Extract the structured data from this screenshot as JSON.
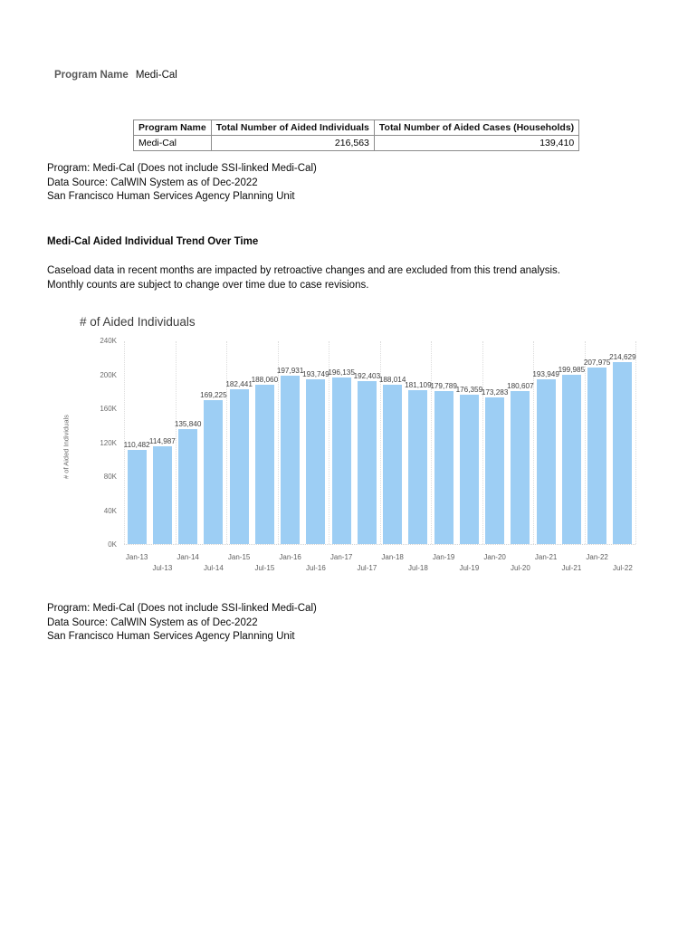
{
  "header": {
    "program_label": "Program Name",
    "program_value": "Medi-Cal"
  },
  "summary_table": {
    "headers": [
      "Program Name",
      "Total Number of Aided Individuals",
      "Total Number of Aided Cases (Households)"
    ],
    "rows": [
      [
        "Medi-Cal",
        "216,563",
        "139,410"
      ]
    ]
  },
  "source_note_top": [
    "Program: Medi-Cal (Does not include SSI-linked Medi-Cal)",
    "Data Source: CalWIN System as of Dec-2022",
    "San Francisco Human Services Agency Planning Unit"
  ],
  "section": {
    "heading": "Medi-Cal Aided Individual Trend Over Time",
    "note_line1": "Caseload data in recent months are impacted by retroactive changes and are excluded from this trend analysis.",
    "note_line2": "Monthly counts are subject to change over time due to case revisions."
  },
  "chart_data": {
    "type": "bar",
    "title": "# of Aided Individuals",
    "ylabel": "# of Aided Individuals",
    "xlabel": "",
    "categories": [
      "Jan-13",
      "Jul-13",
      "Jan-14",
      "Jul-14",
      "Jan-15",
      "Jul-15",
      "Jan-16",
      "Jul-16",
      "Jan-17",
      "Jul-17",
      "Jan-18",
      "Jul-18",
      "Jan-19",
      "Jul-19",
      "Jan-20",
      "Jul-20",
      "Jan-21",
      "Jul-21",
      "Jan-22",
      "Jul-22"
    ],
    "values": [
      110482,
      114987,
      135840,
      169225,
      182441,
      188060,
      197931,
      193749,
      196135,
      192403,
      188014,
      181109,
      179789,
      176359,
      173283,
      180607,
      193949,
      199985,
      207975,
      214629
    ],
    "data_labels": [
      "110,482",
      "114,987",
      "135,840",
      "169,225",
      "182,441",
      "188,060",
      "197,931",
      "193,749",
      "196,135",
      "192,403",
      "188,014",
      "181,109",
      "179,789",
      "176,359",
      "173,283",
      "180,607",
      "193,949",
      "199,985",
      "207,975",
      "214,629"
    ],
    "y_ticks": [
      "0K",
      "40K",
      "80K",
      "120K",
      "160K",
      "200K",
      "240K"
    ],
    "ylim": [
      0,
      240000
    ],
    "grid": "vertical-dotted-yearly",
    "legend": "none",
    "bar_color": "#9dcef4"
  },
  "source_note_bottom": [
    "Program: Medi-Cal (Does not include SSI-linked Medi-Cal)",
    "Data Source: CalWIN System as of Dec-2022",
    "San Francisco Human Services Agency Planning Unit"
  ]
}
